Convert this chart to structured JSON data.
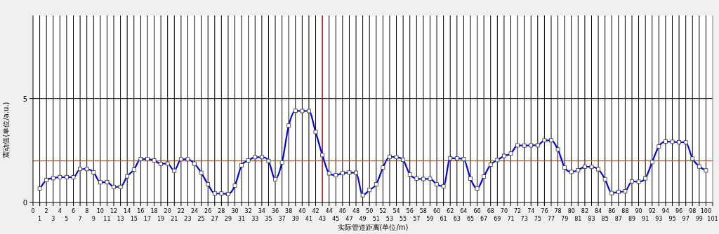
{
  "chart_data": {
    "type": "line",
    "xlabel": "实际管道距离(单位/m)",
    "ylabel": "震动值(单位/a.u.)",
    "x": [
      1,
      2,
      3,
      4,
      5,
      6,
      7,
      8,
      9,
      10,
      11,
      12,
      13,
      14,
      15,
      16,
      17,
      18,
      19,
      20,
      21,
      22,
      23,
      24,
      25,
      26,
      27,
      28,
      29,
      30,
      31,
      32,
      33,
      34,
      35,
      36,
      37,
      38,
      39,
      40,
      41,
      42,
      43,
      44,
      45,
      46,
      47,
      48,
      49,
      50,
      51,
      52,
      53,
      54,
      55,
      56,
      57,
      58,
      59,
      60,
      61,
      62,
      63,
      64,
      65,
      66,
      67,
      68,
      69,
      70,
      71,
      72,
      73,
      74,
      75,
      76,
      77,
      78,
      79,
      80,
      81,
      82,
      83,
      84,
      85,
      86,
      87,
      88,
      89,
      90,
      91,
      92,
      93,
      94,
      95,
      96,
      97,
      98,
      99,
      100
    ],
    "series": [
      {
        "color": "#0000ff",
        "values": [
          0.67,
          1.08,
          1.17,
          1.22,
          1.22,
          1.21,
          1.61,
          1.61,
          1.45,
          0.97,
          0.98,
          0.75,
          0.75,
          1.26,
          1.58,
          2.09,
          2.09,
          2.02,
          1.86,
          1.87,
          1.53,
          2.08,
          2.08,
          1.87,
          1.43,
          0.87,
          0.43,
          0.43,
          0.4,
          0.81,
          1.79,
          2.02,
          2.18,
          2.18,
          2.0,
          1.12,
          1.92,
          3.7,
          4.41,
          4.4,
          4.4,
          3.39,
          2.28,
          1.4,
          1.31,
          1.41,
          1.44,
          1.43,
          0.35,
          0.6,
          0.87,
          1.68,
          2.2,
          2.18,
          2.05,
          1.35,
          1.15,
          1.13,
          1.14,
          0.87,
          0.78,
          2.13,
          2.12,
          2.09,
          1.15,
          0.67,
          1.25,
          1.82,
          2.04,
          2.24,
          2.35,
          2.75,
          2.74,
          2.75,
          2.75,
          2.99,
          2.99,
          2.55,
          1.68,
          1.47,
          1.55,
          1.72,
          1.71,
          1.6,
          1.12,
          0.45,
          0.51,
          0.54,
          1.02,
          1.0,
          1.16,
          1.94,
          2.7,
          2.93,
          2.92,
          2.9,
          2.89,
          2.11,
          1.73,
          1.54
        ]
      }
    ],
    "xlim": [
      0,
      101
    ],
    "ylim": [
      0,
      9
    ],
    "xticks": [
      0,
      2,
      4,
      6,
      8,
      10,
      12,
      14,
      16,
      18,
      20,
      22,
      24,
      26,
      28,
      30,
      32,
      34,
      36,
      38,
      40,
      42,
      44,
      46,
      48,
      50,
      52,
      54,
      56,
      58,
      60,
      62,
      64,
      66,
      68,
      70,
      72,
      74,
      76,
      78,
      80,
      82,
      84,
      86,
      88,
      90,
      92,
      94,
      96,
      98,
      100
    ],
    "x2lim": [
      0,
      101
    ],
    "x2ticks": [
      1,
      3,
      5,
      7,
      9,
      11,
      13,
      15,
      17,
      19,
      21,
      23,
      25,
      27,
      29,
      31,
      33,
      35,
      37,
      39,
      41,
      43,
      45,
      47,
      49,
      51,
      53,
      55,
      57,
      59,
      61,
      63,
      65,
      67,
      69,
      71,
      73,
      75,
      77,
      79,
      81,
      83,
      85,
      87,
      89,
      91,
      93,
      95,
      97,
      99,
      101
    ],
    "yticks": [
      0,
      5
    ],
    "grid": true,
    "ref_lines": [
      {
        "axis": "y",
        "value": 2,
        "color": "#ff0000"
      },
      {
        "axis": "x",
        "value": 43,
        "color": "#ff0000"
      }
    ],
    "marker": "square",
    "line_style": "solid"
  }
}
